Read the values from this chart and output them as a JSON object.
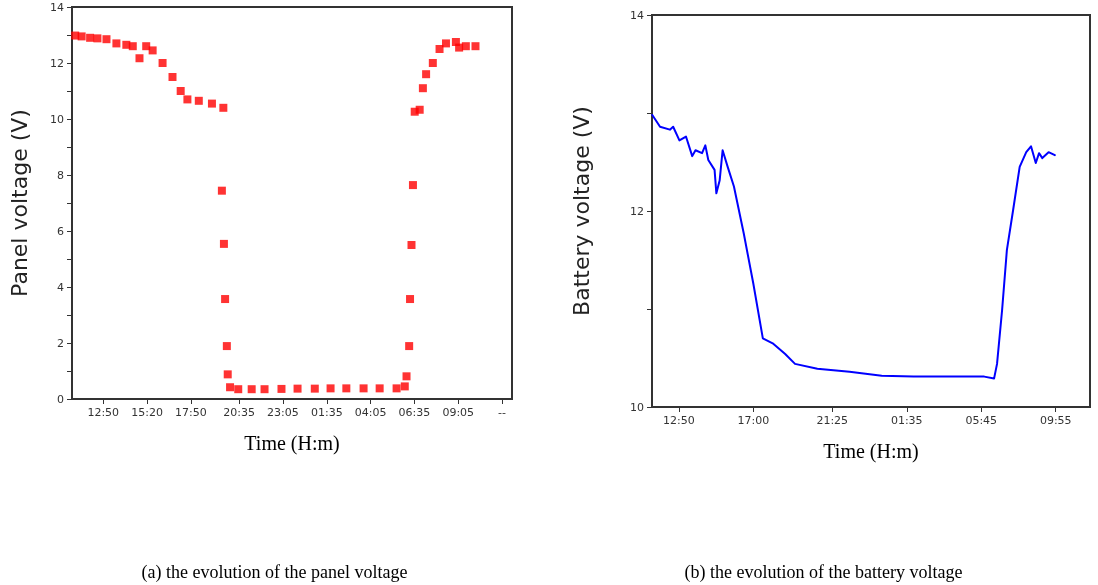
{
  "chart_data": [
    {
      "type": "scatter",
      "xlabel": "Time (H:m)",
      "ylabel": "Panel voltage (V)",
      "annotations": [
        "(a) the evolution of the panel voltage"
      ],
      "xlim": [
        "--01-01T11:03",
        "--01-02T12:09"
      ],
      "ylim": [
        0,
        14
      ],
      "xticks": [
        {
          "value": "--01-01T12:50",
          "label": "12:50"
        },
        {
          "value": "--01-01T15:20",
          "label": "15:20"
        },
        {
          "value": "--01-01T17:50",
          "label": "17:50"
        },
        {
          "value": "--01-01T20:35",
          "label": "20:35"
        },
        {
          "value": "--01-01T23:05",
          "label": "23:05"
        },
        {
          "value": "--01-02T01:35",
          "label": "01:35"
        },
        {
          "value": "--01-02T04:05",
          "label": "04:05"
        },
        {
          "value": "--01-02T06:35",
          "label": "06:35"
        },
        {
          "value": "--01-02T09:05",
          "label": "09:05"
        },
        {
          "value": "--01-02T11:35",
          "label": "--"
        }
      ],
      "yticks": [
        0,
        {
          "value": 1,
          "label": null
        },
        2,
        {
          "value": 3,
          "label": null
        },
        4,
        {
          "value": 5,
          "label": null
        },
        6,
        {
          "value": 7,
          "label": null
        },
        8,
        {
          "value": 9,
          "label": null
        },
        10,
        {
          "value": 11,
          "label": null
        },
        12,
        {
          "value": 13,
          "label": null
        },
        14
      ],
      "marker": "square",
      "grid": false,
      "series": [
        {
          "color": "#ff0000",
          "x": [
            "--01-01T11:14",
            "--01-01T11:36",
            "--01-01T12:05",
            "--01-01T12:30",
            "--01-01T13:01",
            "--01-01T13:35",
            "--01-01T14:09",
            "--01-01T14:31",
            "--01-01T14:54",
            "--01-01T15:17",
            "--01-01T15:39",
            "--01-01T16:13",
            "--01-01T16:47",
            "--01-01T17:15",
            "--01-01T17:38",
            "--01-01T18:17",
            "--01-01T19:02",
            "--01-01T19:36",
            "--01-01T19:41",
            "--01-01T19:43",
            "--01-01T19:47",
            "--01-01T19:53",
            "--01-01T19:56",
            "--01-01T20:04",
            "--01-01T20:32",
            "--01-01T21:18",
            "--01-01T22:02",
            "--01-01T23:00",
            "--01-01T23:55",
            "--01-02T00:54",
            "--01-02T01:48",
            "--01-02T02:42",
            "--01-02T03:41",
            "--01-02T04:36",
            "--01-02T05:34",
            "--01-02T06:02",
            "--01-02T06:08",
            "--01-02T06:17",
            "--01-02T06:20",
            "--01-02T06:25",
            "--01-02T06:30",
            "--01-02T06:36",
            "--01-02T06:53",
            "--01-02T07:04",
            "--01-02T07:15",
            "--01-02T07:38",
            "--01-02T08:01",
            "--01-02T08:23",
            "--01-02T08:57",
            "--01-02T09:08",
            "--01-02T09:31",
            "--01-02T10:04"
          ],
          "values": [
            12.98,
            12.95,
            12.9,
            12.88,
            12.85,
            12.7,
            12.65,
            12.6,
            12.17,
            12.6,
            12.45,
            12.0,
            11.5,
            11.0,
            10.7,
            10.65,
            10.55,
            7.44,
            10.4,
            5.54,
            3.57,
            1.89,
            0.88,
            0.42,
            0.35,
            0.35,
            0.35,
            0.36,
            0.37,
            0.37,
            0.38,
            0.38,
            0.38,
            0.38,
            0.38,
            0.45,
            0.81,
            1.89,
            3.57,
            5.5,
            7.64,
            10.26,
            10.33,
            11.1,
            11.6,
            12.0,
            12.5,
            12.7,
            12.75,
            12.55,
            12.6,
            12.6
          ]
        }
      ]
    },
    {
      "type": "line",
      "xlabel": "Time (H:m)",
      "ylabel": "Battery voltage (V)",
      "annotations": [
        "(b) the evolution of the battery voltage"
      ],
      "xlim": [
        "--01-01T11:20",
        "--01-02T11:50"
      ],
      "ylim": [
        10,
        14
      ],
      "xticks": [
        {
          "value": "--01-01T12:50",
          "label": "12:50"
        },
        {
          "value": "--01-01T17:00",
          "label": "17:00"
        },
        {
          "value": "--01-01T21:25",
          "label": "21:25"
        },
        {
          "value": "--01-02T01:35",
          "label": "01:35"
        },
        {
          "value": "--01-02T05:45",
          "label": "05:45"
        },
        {
          "value": "--01-02T09:55",
          "label": "09:55"
        }
      ],
      "yticks": [
        10,
        {
          "value": 11,
          "label": null
        },
        12,
        {
          "value": 13,
          "label": null
        },
        14
      ],
      "marker": "none",
      "line_style": "solid",
      "grid": false,
      "series": [
        {
          "color": "#0000ff",
          "x": [
            "--01-01T11:21",
            "--01-01T11:47",
            "--01-01T12:20",
            "--01-01T12:31",
            "--01-01T12:52",
            "--01-01T13:14",
            "--01-01T13:35",
            "--01-01T13:46",
            "--01-01T14:08",
            "--01-01T14:19",
            "--01-01T14:29",
            "--01-01T14:50",
            "--01-01T14:56",
            "--01-01T15:07",
            "--01-01T15:17",
            "--01-01T15:34",
            "--01-01T15:55",
            "--01-01T16:28",
            "--01-01T17:00",
            "--01-01T17:32",
            "--01-01T18:05",
            "--01-01T18:47",
            "--01-01T19:20",
            "--01-01T20:35",
            "--01-01T22:23",
            "--01-02T00:11",
            "--01-02T01:58",
            "--01-02T03:46",
            "--01-02T05:55",
            "--01-02T06:28",
            "--01-02T06:38",
            "--01-02T06:55",
            "--01-02T07:11",
            "--01-02T07:32",
            "--01-02T07:54",
            "--01-02T08:16",
            "--01-02T08:32",
            "--01-02T08:48",
            "--01-02T08:59",
            "--01-02T09:10",
            "--01-02T09:31",
            "--01-02T09:52"
          ],
          "values": [
            12.98,
            12.86,
            12.83,
            12.86,
            12.72,
            12.76,
            12.56,
            12.62,
            12.59,
            12.67,
            12.52,
            12.42,
            12.18,
            12.31,
            12.62,
            12.45,
            12.25,
            11.77,
            11.26,
            10.7,
            10.65,
            10.54,
            10.44,
            10.39,
            10.36,
            10.32,
            10.31,
            10.31,
            10.31,
            10.29,
            10.44,
            10.99,
            11.6,
            12.01,
            12.45,
            12.6,
            12.66,
            12.49,
            12.59,
            12.54,
            12.6,
            12.57
          ]
        }
      ]
    }
  ]
}
